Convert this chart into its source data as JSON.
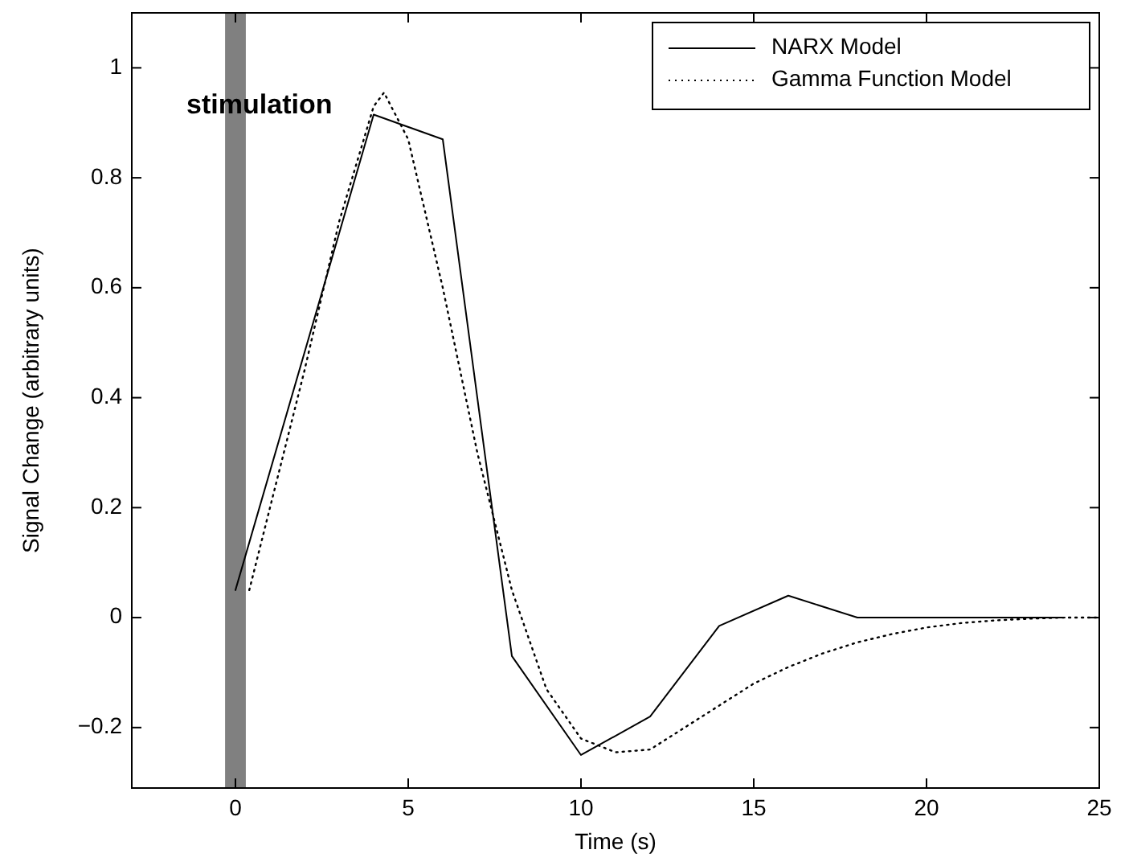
{
  "chart_data": {
    "type": "line",
    "xlabel": "Time (s)",
    "ylabel": "Signal Change (arbitrary units)",
    "xlim": [
      -3,
      25
    ],
    "xticks": [
      0,
      5,
      10,
      15,
      20,
      25
    ],
    "ylim": [
      -0.31,
      1.1
    ],
    "yticks": [
      -0.2,
      0,
      0.2,
      0.4,
      0.6,
      0.8,
      1
    ],
    "grid": false,
    "legend": "top right",
    "bands": [
      {
        "axis": "x",
        "from": -0.3,
        "to": 0.3,
        "label": "stimulation",
        "color": "#808080"
      }
    ],
    "series": [
      {
        "name": "NARX Model",
        "color": "#000000",
        "line_style": "solid",
        "x": [
          0,
          4,
          6,
          8,
          10,
          12,
          14,
          16,
          18,
          20,
          22,
          24
        ],
        "values": [
          0.05,
          0.915,
          0.87,
          -0.07,
          -0.25,
          -0.18,
          -0.015,
          0.04,
          0,
          0,
          0,
          0
        ]
      },
      {
        "name": "Gamma Function Model",
        "color": "#000000",
        "line_style": "dotted",
        "x": [
          0.4,
          1,
          2,
          3,
          4,
          4.3,
          5,
          6,
          7,
          8,
          9,
          10,
          11,
          12,
          13,
          14,
          15,
          16,
          17,
          18,
          19,
          20,
          21,
          22,
          23,
          24,
          25
        ],
        "values": [
          0.05,
          0.2,
          0.45,
          0.72,
          0.93,
          0.955,
          0.87,
          0.6,
          0.3,
          0.05,
          -0.13,
          -0.22,
          -0.245,
          -0.24,
          -0.2,
          -0.16,
          -0.12,
          -0.09,
          -0.065,
          -0.045,
          -0.03,
          -0.018,
          -0.01,
          -0.005,
          -0.002,
          0,
          0
        ]
      }
    ]
  }
}
